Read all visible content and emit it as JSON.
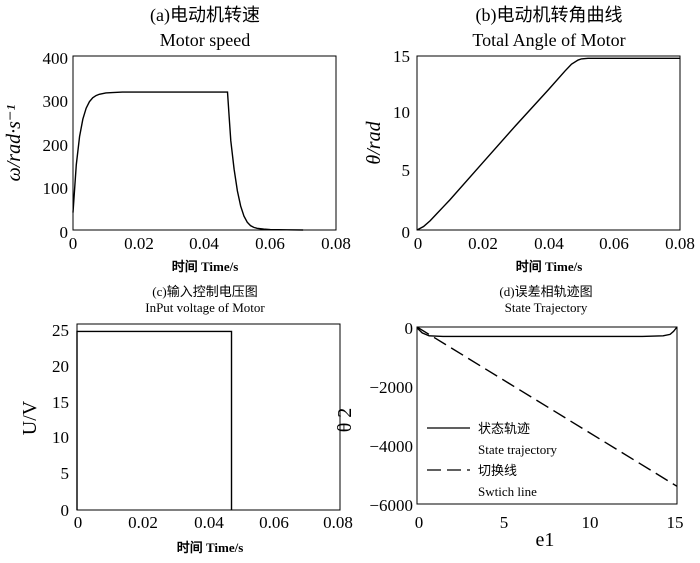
{
  "chart_data": [
    {
      "id": "a",
      "type": "line",
      "title": "(a)电动机转速",
      "subtitle": "Motor speed",
      "xlabel": "时间 Time/s",
      "ylabel": "ω/rad·s⁻¹",
      "xlim": [
        0,
        0.08
      ],
      "ylim": [
        0,
        400
      ],
      "xticks": [
        0,
        0.02,
        0.04,
        0.06,
        0.08
      ],
      "yticks": [
        0,
        100,
        200,
        300,
        400
      ],
      "xtick_labels": [
        "0",
        "0.02",
        "0.04",
        "0.06",
        "0.08"
      ],
      "ytick_labels": [
        "0",
        "100",
        "200",
        "300",
        "400"
      ],
      "series": [
        {
          "x": [
            0,
            0.001,
            0.002,
            0.003,
            0.004,
            0.005,
            0.006,
            0.007,
            0.008,
            0.01,
            0.012,
            0.015,
            0.02,
            0.03,
            0.047,
            0.0475,
            0.048,
            0.049,
            0.05,
            0.051,
            0.052,
            0.053,
            0.054,
            0.055,
            0.056,
            0.058,
            0.06,
            0.065,
            0.07
          ],
          "y": [
            40,
            150,
            215,
            255,
            280,
            295,
            304,
            309,
            312,
            315,
            316,
            317,
            317,
            317,
            317,
            260,
            205,
            140,
            90,
            55,
            32,
            18,
            10,
            6,
            4,
            2,
            1,
            0.5,
            0
          ]
        }
      ]
    },
    {
      "id": "b",
      "type": "line",
      "title": "(b)电动机转角曲线",
      "subtitle": "Total Angle of Motor",
      "xlabel": "时间 Time/s",
      "ylabel": "θ/rad",
      "xlim": [
        0,
        0.08
      ],
      "ylim": [
        0,
        15
      ],
      "xticks": [
        0,
        0.02,
        0.04,
        0.06,
        0.08
      ],
      "yticks": [
        0,
        5,
        10,
        15
      ],
      "xtick_labels": [
        "0",
        "0.02",
        "0.04",
        "0.06",
        "0.08"
      ],
      "ytick_labels": [
        "0",
        "5",
        "10",
        "15"
      ],
      "series": [
        {
          "x": [
            0,
            0.002,
            0.004,
            0.006,
            0.008,
            0.01,
            0.02,
            0.03,
            0.04,
            0.045,
            0.047,
            0.049,
            0.05,
            0.052,
            0.055,
            0.06,
            0.08
          ],
          "y": [
            0,
            0.3,
            0.8,
            1.4,
            2.0,
            2.6,
            5.8,
            9.0,
            12.1,
            13.7,
            14.3,
            14.65,
            14.75,
            14.8,
            14.8,
            14.8,
            14.8
          ]
        }
      ]
    },
    {
      "id": "c",
      "type": "line",
      "title": "(c)输入控制电压图",
      "subtitle": "InPut voltage of Motor",
      "xlabel": "时间 Time/s",
      "ylabel": "U/V",
      "xlim": [
        0,
        0.08
      ],
      "ylim": [
        0,
        25
      ],
      "xticks": [
        0,
        0.02,
        0.04,
        0.06,
        0.08
      ],
      "yticks": [
        0,
        5,
        10,
        15,
        20,
        25
      ],
      "xtick_labels": [
        "0",
        "0.02",
        "0.04",
        "0.06",
        "0.08"
      ],
      "ytick_labels": [
        "0",
        "5",
        "10",
        "15",
        "20",
        "25"
      ],
      "series": [
        {
          "x": [
            0,
            0,
            0.047,
            0.047
          ],
          "y": [
            0,
            24,
            24,
            0
          ]
        }
      ]
    },
    {
      "id": "d",
      "type": "line",
      "title": "(d)误差相轨迹图",
      "subtitle": "State Trajectory",
      "xlabel": "e1",
      "ylabel": "θ 2",
      "xlim": [
        0,
        15
      ],
      "ylim": [
        -6000,
        0
      ],
      "xticks": [
        0,
        5,
        10,
        15
      ],
      "yticks": [
        0,
        -2000,
        -4000,
        -6000
      ],
      "xtick_labels": [
        "0",
        "5",
        "10",
        "15"
      ],
      "ytick_labels": [
        "0",
        "−2000",
        "−4000",
        "−6000"
      ],
      "legend": "lower-left",
      "series": [
        {
          "name": "状态轨迹",
          "name_en": "State trajectory",
          "style": "solid",
          "x": [
            0,
            0.3,
            0.7,
            1.5,
            3,
            13,
            14.2,
            14.6,
            14.8,
            15
          ],
          "y": [
            -30,
            -200,
            -300,
            -320,
            -320,
            -320,
            -300,
            -250,
            -150,
            0
          ]
        },
        {
          "name": "切换线",
          "name_en": "Swtich line",
          "style": "dashed",
          "x": [
            0,
            15
          ],
          "y": [
            0,
            -5400
          ]
        }
      ]
    }
  ]
}
